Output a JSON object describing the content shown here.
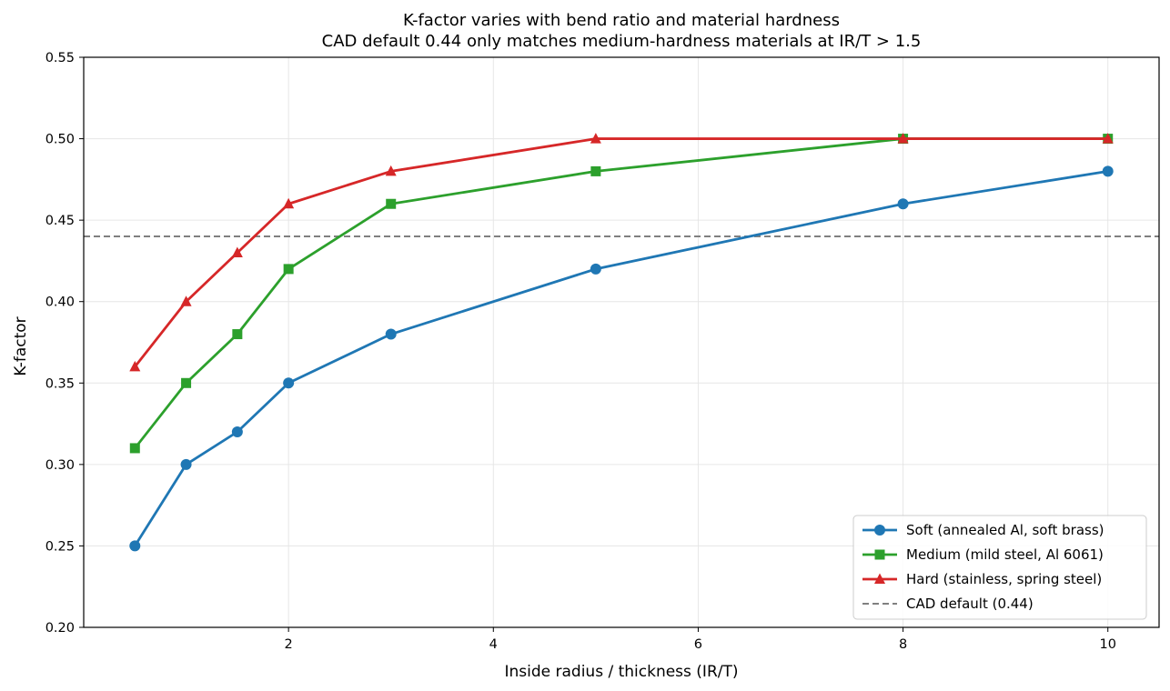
{
  "chart_data": {
    "type": "line",
    "title": "K-factor varies with bend ratio and material hardness",
    "subtitle": "CAD default 0.44 only matches medium-hardness materials at IR/T > 1.5",
    "xlabel": "Inside radius / thickness (IR/T)",
    "ylabel": "K-factor",
    "xlim": [
      0.0,
      10.5
    ],
    "ylim": [
      0.2,
      0.55
    ],
    "xticks": [
      2,
      4,
      6,
      8,
      10
    ],
    "xtick_labels": [
      "2",
      "4",
      "6",
      "8",
      "10"
    ],
    "yticks": [
      0.2,
      0.25,
      0.3,
      0.35,
      0.4,
      0.45,
      0.5,
      0.55
    ],
    "ytick_labels": [
      "0.20",
      "0.25",
      "0.30",
      "0.35",
      "0.40",
      "0.45",
      "0.50",
      "0.55"
    ],
    "grid": true,
    "legend_position": "lower-right",
    "series": [
      {
        "name": "Soft (annealed Al, soft brass)",
        "color": "#1f77b4",
        "marker": "circle",
        "x": [
          0.5,
          1,
          1.5,
          2,
          3,
          5,
          8,
          10
        ],
        "y": [
          0.25,
          0.3,
          0.32,
          0.35,
          0.38,
          0.42,
          0.46,
          0.48
        ]
      },
      {
        "name": "Medium (mild steel, Al 6061)",
        "color": "#2ca02c",
        "marker": "square",
        "x": [
          0.5,
          1,
          1.5,
          2,
          3,
          5,
          8,
          10
        ],
        "y": [
          0.31,
          0.35,
          0.38,
          0.42,
          0.46,
          0.48,
          0.5,
          0.5
        ]
      },
      {
        "name": "Hard (stainless, spring steel)",
        "color": "#d62728",
        "marker": "triangle",
        "x": [
          0.5,
          1,
          1.5,
          2,
          3,
          5,
          8,
          10
        ],
        "y": [
          0.36,
          0.4,
          0.43,
          0.46,
          0.48,
          0.5,
          0.5,
          0.5
        ]
      }
    ],
    "reference_line": {
      "name": "CAD default (0.44)",
      "y": 0.44,
      "color": "#808080",
      "style": "dashed"
    }
  }
}
